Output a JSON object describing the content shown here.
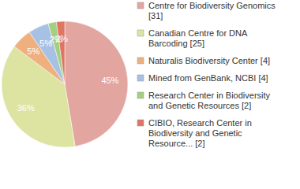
{
  "chart_data": {
    "type": "pie",
    "categories": [
      "Centre for Biodiversity Genomics [31]",
      "Canadian Centre for DNA Barcoding [25]",
      "Naturalis Biodiversity Center [4]",
      "Mined from GenBank, NCBI [4]",
      "Research Center in Biodiversity and Genetic Resources [2]",
      "CIBIO, Research Center in Biodiversity and Genetic Resource... [2]"
    ],
    "values": [
      45,
      36,
      5,
      5,
      2,
      2
    ],
    "value_labels": [
      "45%",
      "36%",
      "5%",
      "5%",
      "2%",
      "2%"
    ],
    "colors": [
      "#e2a59f",
      "#dde3a0",
      "#eeb07e",
      "#a6c1e3",
      "#a5cf80",
      "#e07563"
    ],
    "data_labels": true,
    "legend": "right"
  }
}
